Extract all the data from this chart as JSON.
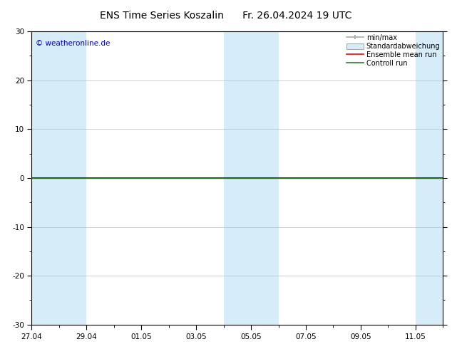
{
  "title_left": "ENS Time Series Koszalin",
  "title_right": "Fr. 26.04.2024 19 UTC",
  "ylim": [
    -30,
    30
  ],
  "yticks": [
    -30,
    -20,
    -10,
    0,
    10,
    20,
    30
  ],
  "xtick_labels": [
    "27.04",
    "29.04",
    "01.05",
    "03.05",
    "05.05",
    "07.05",
    "09.05",
    "11.05"
  ],
  "xtick_positions": [
    0,
    2,
    4,
    6,
    8,
    10,
    12,
    14
  ],
  "total_days": 15,
  "weekend_bands": [
    [
      0,
      1
    ],
    [
      1,
      2
    ],
    [
      7,
      8
    ],
    [
      8,
      9
    ],
    [
      14,
      15
    ]
  ],
  "bg_color": "#ffffff",
  "band_color": "#d6ecf8",
  "control_run_color": "#2d7a2d",
  "ensemble_mean_color": "#ff0000",
  "minmax_color": "#aaaaaa",
  "watermark": "© weatheronline.de",
  "watermark_color": "#0000cc",
  "legend_labels": [
    "min/max",
    "Standardabweichung",
    "Ensemble mean run",
    "Controll run"
  ],
  "title_fontsize": 10,
  "tick_fontsize": 7.5,
  "watermark_fontsize": 7.5,
  "legend_fontsize": 7,
  "fig_width": 6.34,
  "fig_height": 4.9,
  "dpi": 100
}
